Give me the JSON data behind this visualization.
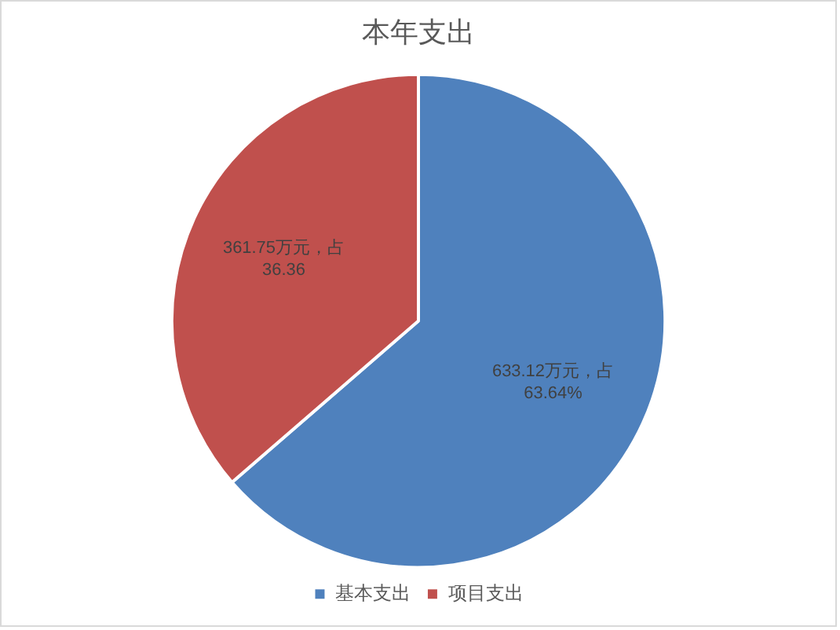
{
  "chart_data": {
    "type": "pie",
    "title": "本年支出",
    "categories": [
      "基本支出",
      "项目支出"
    ],
    "values": [
      633.12,
      361.75
    ],
    "colors": [
      "#4f81bd",
      "#c0504d"
    ],
    "value_labels": [
      "633.12万元，占 63.64%",
      "361.75万元，占 36.36"
    ],
    "legend": "bottom"
  }
}
